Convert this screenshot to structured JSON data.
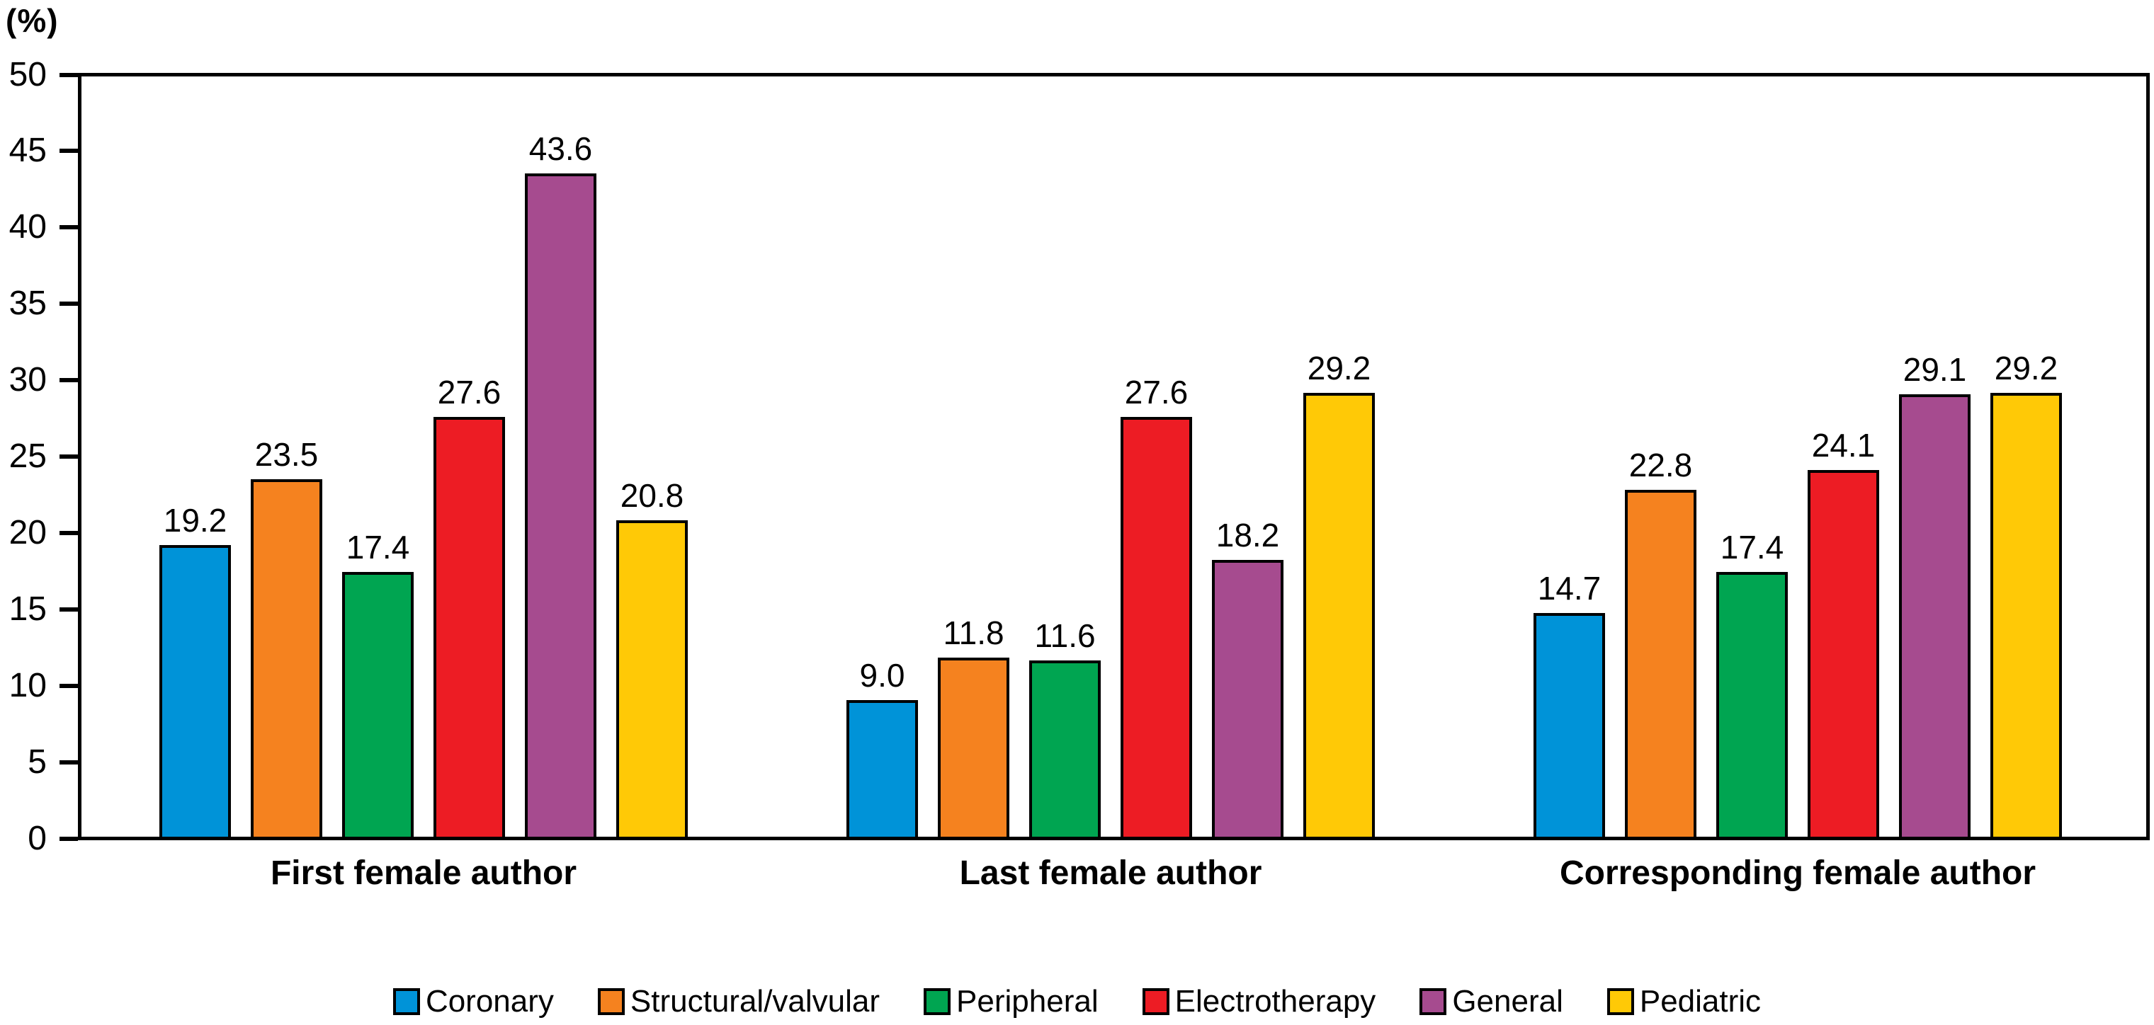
{
  "chart_data": {
    "type": "bar",
    "title": "",
    "y_axis_unit": "(%)",
    "ylim": [
      0,
      50
    ],
    "yticks": [
      0,
      5,
      10,
      15,
      20,
      25,
      30,
      35,
      40,
      45,
      50
    ],
    "grid": false,
    "legend_position": "bottom",
    "value_label_decimals": 1,
    "bar_outline_color": "#000000",
    "categories": [
      "First female author",
      "Last female author",
      "Corresponding female author"
    ],
    "series": [
      {
        "name": "Coronary",
        "color": "#0093D8",
        "values": [
          19.2,
          9.0,
          14.7
        ]
      },
      {
        "name": "Structural/valvular",
        "color": "#F5821F",
        "values": [
          23.5,
          11.8,
          22.8
        ]
      },
      {
        "name": "Peripheral",
        "color": "#00A551",
        "values": [
          17.4,
          11.6,
          17.4
        ]
      },
      {
        "name": "Electrotherapy",
        "color": "#ED1C24",
        "values": [
          27.6,
          27.6,
          24.1
        ]
      },
      {
        "name": "General",
        "color": "#A64B8F",
        "values": [
          43.6,
          18.2,
          29.1
        ]
      },
      {
        "name": "Pediatric",
        "color": "#FFC906",
        "values": [
          20.8,
          29.2,
          29.2
        ]
      }
    ]
  }
}
